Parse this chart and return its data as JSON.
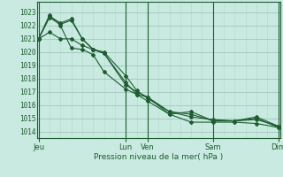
{
  "title": "Pression niveau de la mer( hPa )",
  "ylabel_values": [
    1014,
    1015,
    1016,
    1017,
    1018,
    1019,
    1020,
    1021,
    1022,
    1023
  ],
  "ylim": [
    1013.5,
    1023.8
  ],
  "xlim": [
    -1,
    133
  ],
  "background_color": "#c8eae0",
  "grid_major_color": "#9bbfb5",
  "grid_minor_color": "#b5d9cf",
  "line_color": "#1e5c30",
  "day_labels": [
    "Jeu",
    "Lun",
    "Ven",
    "Sam",
    "Dim"
  ],
  "day_positions": [
    0,
    48,
    60,
    96,
    132
  ],
  "series": [
    [
      1021.0,
      1022.8,
      1022.0,
      1020.3,
      1020.2,
      1019.8,
      1018.5,
      1017.2,
      1016.8,
      1016.6,
      1015.3,
      1015.5,
      1014.8,
      1014.8,
      1014.9,
      1014.4
    ],
    [
      1021.0,
      1022.7,
      1022.2,
      1022.5,
      1021.0,
      1020.2,
      1020.0,
      1018.2,
      1017.1,
      1016.5,
      1015.5,
      1015.3,
      1014.8,
      1014.8,
      1015.0,
      1014.3
    ],
    [
      1021.0,
      1022.6,
      1022.1,
      1022.4,
      1021.0,
      1020.2,
      1019.9,
      1017.7,
      1016.8,
      1016.3,
      1015.3,
      1014.7,
      1014.7,
      1014.7,
      1014.6,
      1014.3
    ],
    [
      1021.0,
      1021.5,
      1021.0,
      1021.0,
      1020.5,
      1020.2,
      1019.9,
      1017.5,
      1017.0,
      1016.6,
      1015.5,
      1015.1,
      1014.9,
      1014.8,
      1015.1,
      1014.4
    ]
  ],
  "x_positions": [
    0,
    6,
    12,
    18,
    24,
    30,
    36,
    48,
    54,
    60,
    72,
    84,
    96,
    108,
    120,
    132
  ]
}
